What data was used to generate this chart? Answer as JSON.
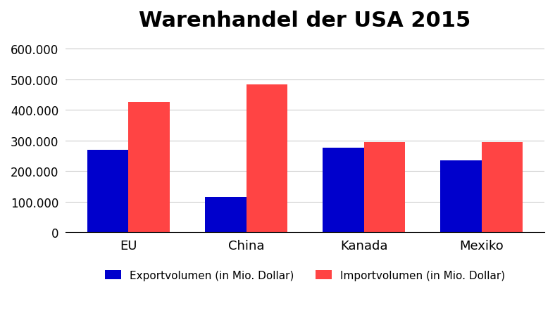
{
  "title": "Warenhandel der USA 2015",
  "categories": [
    "EU",
    "China",
    "Kanada",
    "Mexiko"
  ],
  "export_values": [
    270000,
    116000,
    276000,
    236000
  ],
  "import_values": [
    426000,
    483000,
    296000,
    296000
  ],
  "export_color": "#0000CC",
  "import_color": "#FF4444",
  "export_label": "Exportvolumen (in Mio. Dollar)",
  "import_label": "Importvolumen (in Mio. Dollar)",
  "ylim": [
    0,
    630000
  ],
  "yticks": [
    0,
    100000,
    200000,
    300000,
    400000,
    500000,
    600000
  ],
  "ytick_labels": [
    "0",
    "100.000",
    "200.000",
    "300.000",
    "400.000",
    "500.000",
    "600.000"
  ],
  "background_color": "#FFFFFF",
  "title_fontsize": 22,
  "bar_width": 0.35,
  "legend_fontsize": 11,
  "tick_fontsize": 12,
  "xlabel_fontsize": 13
}
